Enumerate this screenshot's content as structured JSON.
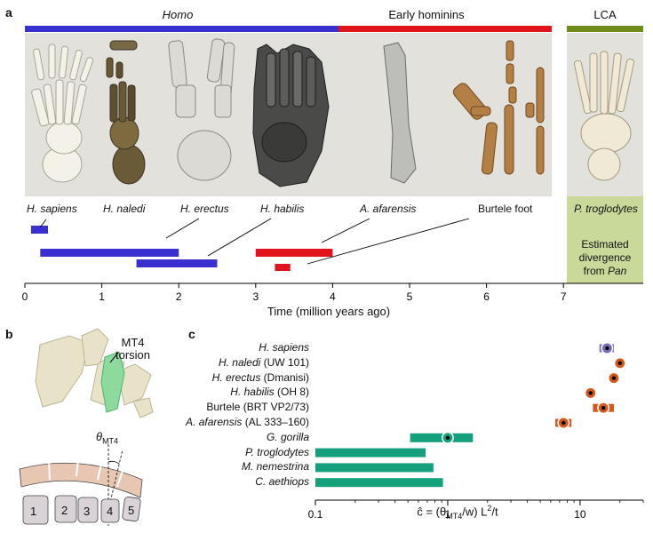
{
  "panel_a": {
    "letter": "a",
    "groups": [
      {
        "label": "Homo",
        "italic": true,
        "color": "#3a2fcf"
      },
      {
        "label": "Early hominins",
        "italic": false,
        "color": "#e0141a"
      },
      {
        "label": "LCA",
        "italic": false,
        "color": "#6e8c1a"
      }
    ],
    "specimen_labels": [
      {
        "name": "H. sapiens",
        "italic": true
      },
      {
        "name": "H. naledi",
        "italic": true
      },
      {
        "name": "H. erectus",
        "italic": true
      },
      {
        "name": "H. habilis",
        "italic": true
      },
      {
        "name": "A. afarensis",
        "italic": true
      },
      {
        "name": "Burtele foot",
        "italic": false
      },
      {
        "name": "P. troglodytes",
        "italic": true
      }
    ],
    "lca_box": {
      "line1": "Estimated",
      "line2": "divergence",
      "line3_prefix": "from ",
      "line3_italic": "Pan"
    },
    "timeline": {
      "xlabel": "Time (million years ago)",
      "ticks": [
        0,
        1,
        2,
        3,
        4,
        5,
        6,
        7
      ],
      "ranges": [
        {
          "name": "H. sapiens",
          "start": 0.08,
          "end": 0.3,
          "color": "#3a2fcf"
        },
        {
          "name": "H. naledi",
          "start": 0.2,
          "end": 2.0,
          "color": "#3a2fcf"
        },
        {
          "name": "H. erectus",
          "start": 1.45,
          "end": 2.5,
          "color": "#3a2fcf"
        },
        {
          "name": "A. afarensis",
          "start": 3.0,
          "end": 4.0,
          "color": "#e0141a"
        },
        {
          "name": "Burtele foot",
          "start": 3.25,
          "end": 3.45,
          "color": "#e0141a"
        }
      ]
    }
  },
  "panel_b": {
    "letter": "b",
    "label_line1": "MT4",
    "label_line2": "torsion",
    "theta_symbol": "θ",
    "theta_sub": "MT4",
    "metatarsals": [
      "1",
      "2",
      "3",
      "4",
      "5"
    ]
  },
  "panel_c": {
    "letter": "c",
    "xlabel_text": "ĉ = (θ",
    "xlabel_sub": "MT4",
    "xlabel_mid": "/w) L",
    "xlabel_sup": "2",
    "xlabel_end": "/t",
    "ticks": [
      "0.1",
      "1",
      "10"
    ]
  },
  "chart_data": {
    "type": "scatter",
    "xscale": "log",
    "xlim": [
      0.1,
      30
    ],
    "xlabel": "ĉ = (θMT4/w) L²/t",
    "rows": [
      {
        "label_italic": "H. sapiens",
        "label_plain": "",
        "value": 16,
        "err_low": 14,
        "err_high": 18,
        "kind": "point",
        "color": "#7a6bb8"
      },
      {
        "label_italic": "H. naledi",
        "label_plain": " (UW 101)",
        "value": 20,
        "kind": "point",
        "color": "#d4571c"
      },
      {
        "label_italic": "H. erectus",
        "label_plain": " (Dmanisi)",
        "value": 18,
        "kind": "point",
        "color": "#d4571c"
      },
      {
        "label_italic": "H. habilis",
        "label_plain": " (OH 8)",
        "value": 12,
        "kind": "point",
        "color": "#d4571c"
      },
      {
        "label_italic": "",
        "label_plain": "Burtele (BRT VP2/73)",
        "value": 15,
        "err_low": 12.5,
        "err_high": 18,
        "kind": "point",
        "color": "#d4571c"
      },
      {
        "label_italic": "A. afarensis",
        "label_plain": " (AL 333–160)",
        "value": 7.5,
        "err_low": 6.5,
        "err_high": 8.6,
        "kind": "point",
        "color": "#d4571c"
      },
      {
        "label_italic": "G. gorilla",
        "label_plain": "",
        "value": 1.0,
        "range": [
          0.52,
          1.55
        ],
        "kind": "range-point",
        "color": "#15a07c"
      },
      {
        "label_italic": "P. troglodytes",
        "label_plain": "",
        "range": [
          0.1,
          0.68
        ],
        "kind": "range",
        "color": "#15a07c"
      },
      {
        "label_italic": "M. nemestrina",
        "label_plain": "",
        "range": [
          0.1,
          0.78
        ],
        "kind": "range",
        "color": "#15a07c"
      },
      {
        "label_italic": "C. aethiops",
        "label_plain": "",
        "range": [
          0.1,
          0.92
        ],
        "kind": "range",
        "color": "#15a07c"
      }
    ]
  }
}
